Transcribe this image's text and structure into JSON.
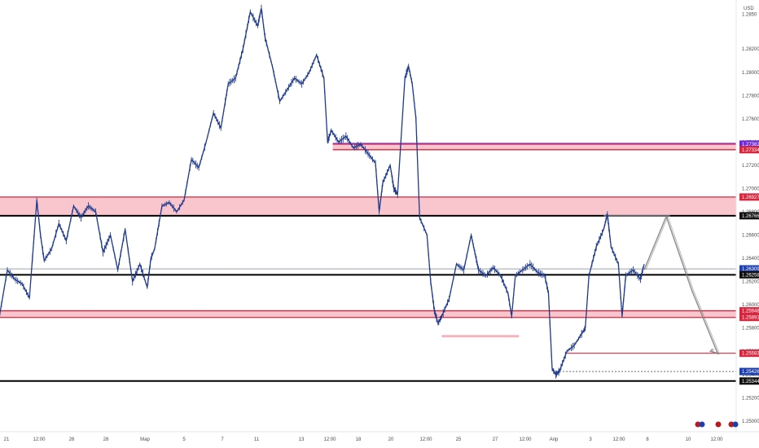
{
  "symbol_currency": "USD",
  "colors": {
    "candle": "#1e3a8a",
    "zone_fill": "#f7b3bd",
    "zone_line": "#d7263d",
    "support_line": "#000000",
    "purple_line": "#7c3aed",
    "gray_line": "#9ca3af",
    "projection": "#7a7a7a",
    "tag_red": "#d7263d",
    "tag_black": "#111111",
    "tag_blue": "#1e40af",
    "tag_purple": "#6d28d9"
  },
  "price_axis": {
    "min": 1.2495,
    "max": 1.2858,
    "ticks": [
      "1.2850",
      "1.28200",
      "1.28000",
      "1.27800",
      "1.27600",
      "1.27400",
      "1.27200",
      "1.27000",
      "1.26800",
      "1.26600",
      "1.26400",
      "1.26200",
      "1.26000",
      "1.25800",
      "1.25600",
      "1.25400",
      "1.25200",
      "1.25000"
    ]
  },
  "time_axis": {
    "labels": [
      "21",
      "12:00",
      "26",
      "28",
      "Мар",
      "5",
      "7",
      "11",
      "13",
      "12:00",
      "18",
      "20",
      "12:00",
      "25",
      "27",
      "12:00",
      "Апр",
      "3",
      "12:00",
      "8",
      "10",
      "12:00"
    ]
  },
  "price_tags": [
    {
      "label": "1.27382",
      "value": 1.27382,
      "kind": "purple"
    },
    {
      "label": "1.27334",
      "value": 1.27334,
      "kind": "red"
    },
    {
      "label": "1.26927",
      "value": 1.26927,
      "kind": "red"
    },
    {
      "label": "1.26766",
      "value": 1.26766,
      "kind": "black"
    },
    {
      "label": "1.26309",
      "value": 1.26309,
      "kind": "blue"
    },
    {
      "label": "1.26258",
      "value": 1.26258,
      "kind": "black"
    },
    {
      "label": "1.25948",
      "value": 1.25948,
      "kind": "red"
    },
    {
      "label": "1.25891",
      "value": 1.25891,
      "kind": "red"
    },
    {
      "label": "1.25583",
      "value": 1.25583,
      "kind": "red"
    },
    {
      "label": "1.25426",
      "value": 1.25426,
      "kind": "blue"
    },
    {
      "label": "1.25344",
      "value": 1.25344,
      "kind": "black"
    }
  ],
  "chart_data": {
    "type": "candlestick",
    "ylim": [
      1.2495,
      1.2858
    ],
    "zones": [
      {
        "from": 1.26766,
        "to": 1.26927,
        "x_start": 0.0
      },
      {
        "from": 1.27334,
        "to": 1.27382,
        "x_start": 0.452
      },
      {
        "from": 1.25891,
        "to": 1.25948,
        "x_start": 0.0
      }
    ],
    "levels": [
      {
        "value": 1.26766,
        "style": "support",
        "x_start": 0.0
      },
      {
        "value": 1.26258,
        "style": "support",
        "x_start": 0.0
      },
      {
        "value": 1.25344,
        "style": "support",
        "x_start": 0.0
      },
      {
        "value": 1.26309,
        "style": "gray",
        "x_start": 0.0
      },
      {
        "value": 1.25583,
        "style": "red",
        "x_start": 0.77
      },
      {
        "value": 1.2573,
        "style": "light-red",
        "x_start": 0.6,
        "x_end": 0.705
      },
      {
        "value": 1.25426,
        "style": "dotted",
        "x_start": 0.76
      },
      {
        "value": 1.26766,
        "style": "gray",
        "x_start": 0.82,
        "x_end": 0.91
      }
    ],
    "price_path": [
      [
        0.0,
        1.2593
      ],
      [
        0.01,
        1.263
      ],
      [
        0.02,
        1.2622
      ],
      [
        0.03,
        1.2618
      ],
      [
        0.04,
        1.2606
      ],
      [
        0.05,
        1.269
      ],
      [
        0.055,
        1.266
      ],
      [
        0.06,
        1.2638
      ],
      [
        0.07,
        1.2648
      ],
      [
        0.08,
        1.267
      ],
      [
        0.09,
        1.2655
      ],
      [
        0.1,
        1.2685
      ],
      [
        0.11,
        1.2675
      ],
      [
        0.12,
        1.2685
      ],
      [
        0.13,
        1.268
      ],
      [
        0.14,
        1.2645
      ],
      [
        0.15,
        1.266
      ],
      [
        0.16,
        1.263
      ],
      [
        0.17,
        1.2665
      ],
      [
        0.18,
        1.262
      ],
      [
        0.19,
        1.2635
      ],
      [
        0.2,
        1.2615
      ],
      [
        0.205,
        1.264
      ],
      [
        0.21,
        1.2648
      ],
      [
        0.22,
        1.2685
      ],
      [
        0.23,
        1.2688
      ],
      [
        0.24,
        1.268
      ],
      [
        0.25,
        1.269
      ],
      [
        0.26,
        1.2725
      ],
      [
        0.27,
        1.2718
      ],
      [
        0.28,
        1.274
      ],
      [
        0.29,
        1.2765
      ],
      [
        0.3,
        1.2752
      ],
      [
        0.31,
        1.279
      ],
      [
        0.32,
        1.2795
      ],
      [
        0.33,
        1.282
      ],
      [
        0.34,
        1.2852
      ],
      [
        0.35,
        1.284
      ],
      [
        0.355,
        1.2855
      ],
      [
        0.36,
        1.283
      ],
      [
        0.37,
        1.2805
      ],
      [
        0.38,
        1.2775
      ],
      [
        0.39,
        1.2785
      ],
      [
        0.4,
        1.2795
      ],
      [
        0.41,
        1.279
      ],
      [
        0.42,
        1.28
      ],
      [
        0.43,
        1.2815
      ],
      [
        0.44,
        1.2795
      ],
      [
        0.445,
        1.274
      ],
      [
        0.45,
        1.275
      ],
      [
        0.46,
        1.274
      ],
      [
        0.47,
        1.2745
      ],
      [
        0.48,
        1.2735
      ],
      [
        0.49,
        1.2738
      ],
      [
        0.5,
        1.273
      ],
      [
        0.51,
        1.2722
      ],
      [
        0.515,
        1.268
      ],
      [
        0.52,
        1.2705
      ],
      [
        0.53,
        1.272
      ],
      [
        0.535,
        1.27
      ],
      [
        0.54,
        1.2695
      ],
      [
        0.55,
        1.2795
      ],
      [
        0.555,
        1.2805
      ],
      [
        0.56,
        1.279
      ],
      [
        0.565,
        1.276
      ],
      [
        0.57,
        1.2675
      ],
      [
        0.58,
        1.266
      ],
      [
        0.585,
        1.262
      ],
      [
        0.59,
        1.2595
      ],
      [
        0.595,
        1.2584
      ],
      [
        0.6,
        1.259
      ],
      [
        0.61,
        1.2605
      ],
      [
        0.62,
        1.2635
      ],
      [
        0.63,
        1.263
      ],
      [
        0.64,
        1.266
      ],
      [
        0.645,
        1.2645
      ],
      [
        0.65,
        1.263
      ],
      [
        0.66,
        1.2625
      ],
      [
        0.67,
        1.2632
      ],
      [
        0.68,
        1.2625
      ],
      [
        0.69,
        1.261
      ],
      [
        0.695,
        1.259
      ],
      [
        0.7,
        1.2625
      ],
      [
        0.71,
        1.263
      ],
      [
        0.72,
        1.2635
      ],
      [
        0.73,
        1.2628
      ],
      [
        0.74,
        1.2625
      ],
      [
        0.745,
        1.261
      ],
      [
        0.75,
        1.2545
      ],
      [
        0.755,
        1.254
      ],
      [
        0.76,
        1.2543
      ],
      [
        0.77,
        1.256
      ],
      [
        0.78,
        1.2565
      ],
      [
        0.79,
        1.2575
      ],
      [
        0.795,
        1.258
      ],
      [
        0.8,
        1.2625
      ],
      [
        0.81,
        1.265
      ],
      [
        0.82,
        1.2665
      ],
      [
        0.825,
        1.2678
      ],
      [
        0.83,
        1.265
      ],
      [
        0.84,
        1.2635
      ],
      [
        0.845,
        1.259
      ],
      [
        0.85,
        1.2625
      ],
      [
        0.86,
        1.263
      ],
      [
        0.87,
        1.2622
      ],
      [
        0.875,
        1.2635
      ]
    ],
    "projection_path": [
      [
        0.875,
        1.263
      ],
      [
        0.905,
        1.2676
      ],
      [
        0.94,
        1.2612
      ],
      [
        0.975,
        1.2558
      ],
      [
        0.965,
        1.256
      ],
      [
        0.968,
        1.2562
      ]
    ]
  }
}
